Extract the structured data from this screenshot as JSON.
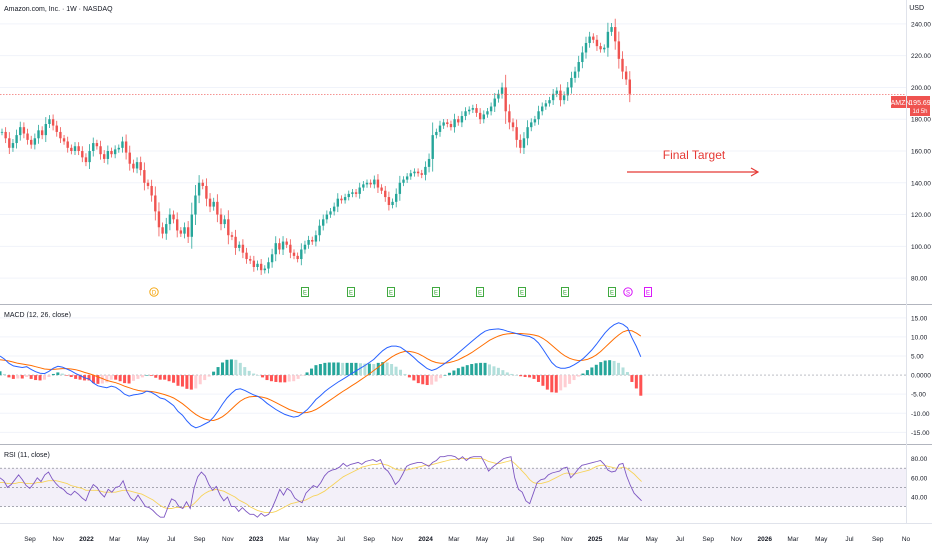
{
  "header": {
    "symbol_title": "Amazon.com, Inc. · 1W · NASDAQ",
    "currency": "USD"
  },
  "price_label": {
    "ticker": "AMZN",
    "price": "195.69",
    "countdown": "1d 5h"
  },
  "annotation": {
    "text": "Final Target"
  },
  "macd_pane": {
    "title": "MACD (12, 26, close)"
  },
  "rsi_pane": {
    "title": "RSI (11, close)"
  },
  "colors": {
    "up": "#26a69a",
    "down": "#ef5350",
    "macd": "#2962ff",
    "signal": "#ff6d00",
    "rsi": "#7e57c2",
    "rsi_ma": "#f7d35a",
    "annotation": "#e53935",
    "hist_up_strong": "#26a69a",
    "hist_up_weak": "#b2dfdb",
    "hist_down_strong": "#ff5252",
    "hist_down_weak": "#ffcdd2",
    "event_green": "#2ca02c",
    "event_dividend": "#f4a100",
    "event_purple": "#d500f9"
  },
  "chart_data": [
    {
      "type": "candlestick",
      "title": "Amazon.com, Inc. · 1W · NASDAQ",
      "ylabel": "USD",
      "ylim": [
        70,
        250
      ],
      "y_ticks": [
        80,
        100,
        120,
        140,
        160,
        180,
        200,
        220,
        240
      ],
      "y_tick_labels": [
        "80.00",
        "100.00",
        "120.00",
        "140.00",
        "160.00",
        "180.00",
        "200.00",
        "220.00",
        "240.00"
      ],
      "x_labels": [
        "Sep",
        "Nov",
        "2022",
        "Mar",
        "May",
        "Jul",
        "Sep",
        "Nov",
        "2023",
        "Mar",
        "May",
        "Jul",
        "Sep",
        "Nov",
        "2024",
        "Mar",
        "May",
        "Jul",
        "Sep",
        "Nov",
        "2025",
        "Mar",
        "May",
        "Jul",
        "Sep",
        "Nov",
        "2026",
        "Mar",
        "May",
        "Jul",
        "Sep",
        "No"
      ],
      "last_price": 195.69,
      "annotation": {
        "text": "Final Target",
        "arrow": "right"
      },
      "events": [
        "D",
        "E",
        "E",
        "E",
        "E",
        "E",
        "E",
        "E",
        "E",
        "S",
        "E"
      ],
      "closes": [
        172,
        168,
        162,
        165,
        170,
        175,
        171,
        167,
        164,
        168,
        173,
        170,
        177,
        180,
        176,
        172,
        168,
        166,
        162,
        160,
        163,
        160,
        156,
        153,
        160,
        165,
        163,
        158,
        155,
        160,
        158,
        161,
        162,
        166,
        159,
        152,
        149,
        153,
        148,
        140,
        138,
        132,
        122,
        112,
        108,
        114,
        120,
        117,
        110,
        108,
        112,
        106,
        120,
        132,
        140,
        138,
        130,
        125,
        128,
        120,
        114,
        117,
        107,
        106,
        99,
        101,
        96,
        92,
        91,
        87,
        89,
        85,
        86,
        90,
        95,
        102,
        98,
        103,
        101,
        96,
        94,
        92,
        98,
        101,
        104,
        103,
        107,
        113,
        117,
        120,
        122,
        125,
        130,
        129,
        131,
        133,
        134,
        133,
        137,
        139,
        140,
        139,
        142,
        137,
        135,
        131,
        126,
        128,
        133,
        140,
        142,
        144,
        146,
        147,
        146,
        145,
        150,
        155,
        170,
        172,
        176,
        178,
        177,
        175,
        180,
        178,
        182,
        185,
        186,
        187,
        184,
        180,
        183,
        185,
        188,
        193,
        196,
        200,
        185,
        178,
        175,
        167,
        162,
        168,
        175,
        178,
        180,
        185,
        188,
        190,
        192,
        196,
        198,
        192,
        195,
        200,
        206,
        210,
        216,
        222,
        228,
        232,
        230,
        226,
        224,
        225,
        235,
        238,
        229,
        218,
        210,
        205,
        196
      ]
    },
    {
      "type": "macd",
      "title": "MACD (12, 26, close)",
      "ylim": [
        -17,
        16
      ],
      "y_ticks": [
        15,
        10,
        5,
        0,
        -5,
        -10,
        -15
      ],
      "y_tick_labels": [
        "15.00",
        "10.00",
        "5.00",
        "0.0000",
        "-5.00",
        "-10.00",
        "-15.00"
      ],
      "series": [
        {
          "name": "MACD",
          "values": [
            5.0,
            4.2,
            3.1,
            2.4,
            2.2,
            2.0,
            2.2,
            1.5,
            0.9,
            0.5,
            0.4,
            1.0,
            1.8,
            2.3,
            2.1,
            1.6,
            1.1,
            0.4,
            -0.1,
            -0.7,
            -1.0,
            -2.1,
            -2.8,
            -3.1,
            -3.3,
            -2.9,
            -3.2,
            -4.0,
            -5.0,
            -5.5,
            -5.2,
            -5.0,
            -4.8,
            -4.2,
            -4.5,
            -5.2,
            -6.0,
            -6.3,
            -7.1,
            -8.0,
            -9.5,
            -10.5,
            -12.0,
            -13.2,
            -13.8,
            -13.4,
            -12.8,
            -12.2,
            -11.0,
            -9.4,
            -7.6,
            -6.0,
            -4.8,
            -3.8,
            -3.6,
            -4.0,
            -4.6,
            -5.2,
            -5.6,
            -6.4,
            -7.4,
            -8.2,
            -9.0,
            -9.7,
            -10.3,
            -10.7,
            -11.0,
            -10.8,
            -10.0,
            -9.1,
            -7.8,
            -6.4,
            -5.4,
            -4.3,
            -3.4,
            -2.6,
            -1.8,
            -1.1,
            -0.4,
            0.4,
            1.1,
            1.8,
            2.5,
            3.3,
            4.1,
            5.3,
            6.4,
            7.2,
            7.6,
            7.6,
            7.3,
            6.5,
            5.6,
            4.6,
            3.5,
            2.6,
            1.7,
            1.2,
            1.6,
            2.3,
            3.1,
            3.9,
            4.8,
            5.8,
            6.8,
            7.8,
            8.8,
            9.8,
            10.7,
            11.5,
            11.9,
            12.0,
            12.1,
            11.9,
            11.5,
            11.2,
            10.9,
            10.6,
            10.3,
            10.1,
            9.5,
            8.4,
            6.8,
            5.0,
            3.3,
            2.2,
            1.8,
            1.8,
            2.1,
            2.7,
            3.4,
            4.3,
            5.4,
            6.6,
            8.0,
            9.6,
            11.1,
            12.3,
            13.2,
            13.7,
            13.3,
            12.4,
            9.8,
            7.5,
            4.8
          ]
        },
        {
          "name": "Signal",
          "values": [
            4.0,
            3.9,
            3.7,
            3.4,
            3.1,
            2.9,
            2.7,
            2.5,
            2.2,
            1.9,
            1.6,
            1.5,
            1.5,
            1.6,
            1.7,
            1.7,
            1.6,
            1.4,
            1.1,
            0.7,
            0.4,
            0.0,
            -0.5,
            -0.9,
            -1.4,
            -1.7,
            -2.0,
            -2.4,
            -2.9,
            -3.3,
            -3.7,
            -4.0,
            -4.2,
            -4.2,
            -4.3,
            -4.5,
            -4.8,
            -5.1,
            -5.5,
            -6.0,
            -6.7,
            -7.5,
            -8.4,
            -9.4,
            -10.3,
            -11.0,
            -11.5,
            -11.8,
            -11.9,
            -11.5,
            -10.9,
            -10.0,
            -8.9,
            -7.8,
            -6.8,
            -6.1,
            -5.7,
            -5.6,
            -5.6,
            -5.8,
            -6.1,
            -6.6,
            -7.2,
            -7.8,
            -8.4,
            -9.0,
            -9.4,
            -9.8,
            -9.9,
            -9.8,
            -9.5,
            -9.0,
            -8.3,
            -7.5,
            -6.7,
            -5.9,
            -5.1,
            -4.3,
            -3.6,
            -2.8,
            -2.1,
            -1.3,
            -0.5,
            0.3,
            1.2,
            2.1,
            3.0,
            3.9,
            4.7,
            5.4,
            5.9,
            6.2,
            6.2,
            6.0,
            5.6,
            5.0,
            4.3,
            3.7,
            3.3,
            3.1,
            3.1,
            3.3,
            3.6,
            4.0,
            4.6,
            5.2,
            5.9,
            6.7,
            7.5,
            8.3,
            9.1,
            9.7,
            10.2,
            10.6,
            10.8,
            10.9,
            10.9,
            10.9,
            10.8,
            10.7,
            10.5,
            10.2,
            9.6,
            8.8,
            7.8,
            6.8,
            5.8,
            5.0,
            4.4,
            4.0,
            3.8,
            3.9,
            4.1,
            4.6,
            5.3,
            6.2,
            7.3,
            8.4,
            9.5,
            10.5,
            11.3,
            11.7,
            11.6,
            11.0,
            10.2
          ]
        },
        {
          "name": "Histogram",
          "values": [
            1.0,
            0.3,
            -0.6,
            -1.0,
            -0.9,
            -0.9,
            -0.5,
            -1.0,
            -1.3,
            -1.4,
            -1.2,
            -0.5,
            0.3,
            0.7,
            0.4,
            -0.1,
            -0.5,
            -1.0,
            -1.2,
            -1.4,
            -1.4,
            -2.1,
            -2.3,
            -2.2,
            -1.9,
            -1.2,
            -1.2,
            -1.6,
            -2.1,
            -2.2,
            -1.5,
            -1.0,
            -0.6,
            0.0,
            -0.2,
            -0.7,
            -1.2,
            -1.2,
            -1.6,
            -2.0,
            -2.8,
            -3.0,
            -3.6,
            -3.8,
            -3.5,
            -2.4,
            -1.3,
            -0.4,
            0.9,
            2.1,
            3.3,
            4.0,
            4.1,
            4.0,
            3.2,
            2.1,
            1.1,
            0.4,
            0.0,
            -0.6,
            -1.3,
            -1.6,
            -1.8,
            -1.9,
            -1.9,
            -1.7,
            -1.6,
            -1.0,
            -0.1,
            0.7,
            1.7,
            2.6,
            2.9,
            3.2,
            3.3,
            3.3,
            3.3,
            3.2,
            3.2,
            3.2,
            3.2,
            3.1,
            3.0,
            3.0,
            2.9,
            3.2,
            3.4,
            3.3,
            2.9,
            2.2,
            1.4,
            0.3,
            -0.6,
            -1.4,
            -2.1,
            -2.4,
            -2.6,
            -2.5,
            -1.7,
            -0.8,
            0.0,
            0.6,
            1.2,
            1.8,
            2.2,
            2.6,
            2.9,
            3.1,
            3.2,
            3.2,
            2.8,
            2.3,
            1.9,
            1.3,
            0.7,
            0.3,
            0.0,
            -0.3,
            -0.5,
            -0.6,
            -1.0,
            -1.8,
            -2.8,
            -3.8,
            -4.5,
            -4.6,
            -4.0,
            -3.2,
            -2.3,
            -1.3,
            -0.4,
            0.4,
            1.3,
            2.0,
            2.7,
            3.4,
            3.8,
            3.9,
            3.7,
            3.2,
            2.0,
            0.8,
            -1.8,
            -3.5,
            -5.4
          ]
        }
      ]
    },
    {
      "type": "rsi",
      "title": "RSI (11, close)",
      "ylim": [
        15,
        90
      ],
      "y_ticks": [
        80,
        60,
        40
      ],
      "y_tick_labels": [
        "80.00",
        "60.00",
        "40.00"
      ],
      "bands": [
        70,
        50,
        30
      ],
      "series": [
        {
          "name": "RSI",
          "values": [
            60,
            57,
            50,
            53,
            58,
            63,
            58,
            52,
            49,
            54,
            60,
            56,
            63,
            66,
            59,
            54,
            50,
            48,
            44,
            42,
            46,
            43,
            39,
            36,
            46,
            53,
            50,
            44,
            40,
            48,
            45,
            50,
            51,
            57,
            46,
            39,
            36,
            42,
            36,
            30,
            29,
            26,
            22,
            19,
            19,
            29,
            38,
            36,
            30,
            28,
            35,
            28,
            49,
            61,
            66,
            62,
            53,
            47,
            51,
            42,
            36,
            40,
            30,
            30,
            25,
            29,
            25,
            22,
            22,
            19,
            23,
            20,
            22,
            29,
            38,
            48,
            42,
            49,
            46,
            39,
            36,
            34,
            44,
            48,
            52,
            50,
            55,
            62,
            66,
            68,
            69,
            71,
            75,
            72,
            74,
            75,
            76,
            74,
            77,
            78,
            79,
            77,
            79,
            70,
            67,
            61,
            53,
            57,
            64,
            72,
            74,
            75,
            76,
            76,
            74,
            72,
            76,
            78,
            82,
            82,
            83,
            83,
            82,
            79,
            82,
            78,
            81,
            82,
            82,
            82,
            75,
            67,
            71,
            74,
            77,
            80,
            81,
            82,
            60,
            48,
            45,
            36,
            33,
            44,
            55,
            58,
            59,
            63,
            65,
            66,
            67,
            70,
            71,
            60,
            64,
            69,
            73,
            74,
            75,
            76,
            77,
            78,
            74,
            68,
            66,
            67,
            74,
            75,
            62,
            52,
            44,
            40,
            36
          ]
        },
        {
          "name": "RSI-based MA",
          "values": [
            55,
            55,
            54,
            54,
            54,
            55,
            55,
            54,
            54,
            54,
            55,
            55,
            56,
            57,
            57,
            57,
            56,
            55,
            54,
            52,
            51,
            50,
            49,
            47,
            47,
            47,
            47,
            46,
            45,
            45,
            45,
            45,
            46,
            47,
            47,
            46,
            45,
            44,
            43,
            41,
            39,
            37,
            34,
            31,
            29,
            28,
            28,
            29,
            29,
            29,
            30,
            30,
            33,
            37,
            41,
            44,
            46,
            47,
            48,
            47,
            46,
            44,
            42,
            40,
            37,
            35,
            33,
            30,
            28,
            26,
            25,
            24,
            24,
            24,
            25,
            27,
            29,
            31,
            33,
            34,
            35,
            36,
            37,
            39,
            41,
            42,
            44,
            46,
            49,
            52,
            55,
            58,
            61,
            63,
            65,
            67,
            69,
            71,
            72,
            73,
            74,
            74,
            75,
            74,
            73,
            71,
            69,
            68,
            68,
            68,
            69,
            70,
            71,
            72,
            73,
            73,
            74,
            75,
            76,
            77,
            78,
            79,
            79,
            80,
            80,
            80,
            80,
            80,
            80,
            80,
            79,
            77,
            76,
            75,
            75,
            76,
            77,
            78,
            75,
            71,
            67,
            63,
            58,
            55,
            54,
            54,
            55,
            56,
            58,
            60,
            62,
            64,
            65,
            64,
            64,
            65,
            66,
            67,
            68,
            70,
            72,
            73,
            73,
            72,
            71,
            70,
            70,
            71,
            70,
            67,
            64,
            60,
            56
          ]
        }
      ]
    }
  ]
}
